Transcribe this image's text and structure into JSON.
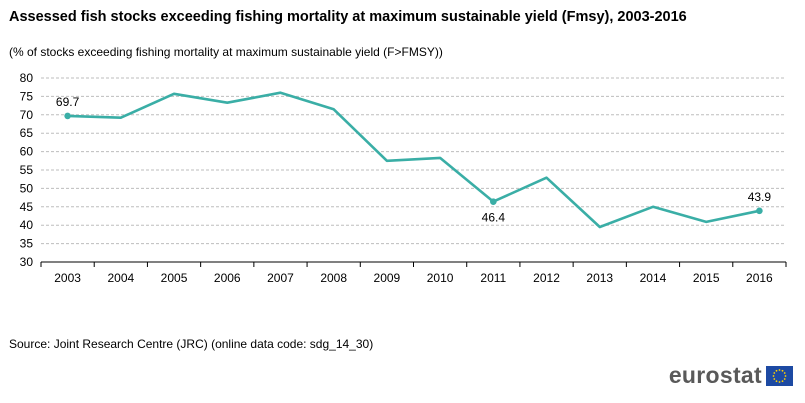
{
  "header": {
    "title": "Assessed fish stocks exceeding fishing mortality at maximum sustainable yield (Fmsy), 2003-2016",
    "subtitle": "(% of stocks exceeding fishing mortality at maximum sustainable  yield (F>FMSY))"
  },
  "footer": {
    "source": "Source: Joint Research Centre (JRC) (online data code: sdg_14_30)",
    "logo_text": "eurostat"
  },
  "colors": {
    "series": "#3aaea6",
    "grid": "#bdbdbd",
    "axis": "#000000",
    "logo_text": "#595959",
    "eu_blue": "#1d4aa3",
    "eu_star": "#ffd200"
  },
  "chart_data": {
    "type": "line",
    "title": "Assessed fish stocks exceeding fishing mortality at maximum sustainable yield (Fmsy), 2003-2016",
    "xlabel": "",
    "ylabel": "",
    "x": [
      "2003",
      "2004",
      "2005",
      "2006",
      "2007",
      "2008",
      "2009",
      "2010",
      "2011",
      "2012",
      "2013",
      "2014",
      "2015",
      "2016"
    ],
    "series": [
      {
        "name": "F>FMSY",
        "values": [
          69.7,
          69.2,
          75.7,
          73.3,
          76.0,
          71.5,
          57.5,
          58.3,
          46.4,
          52.9,
          39.5,
          45.0,
          40.9,
          43.9
        ]
      }
    ],
    "ylim": [
      30,
      80
    ],
    "yticks": [
      30,
      35,
      40,
      45,
      50,
      55,
      60,
      65,
      70,
      75,
      80
    ],
    "grid": true,
    "annotations": [
      {
        "index": 0,
        "label": "69.7",
        "position": "above"
      },
      {
        "index": 8,
        "label": "46.4",
        "position": "below"
      },
      {
        "index": 13,
        "label": "43.9",
        "position": "above"
      }
    ]
  }
}
